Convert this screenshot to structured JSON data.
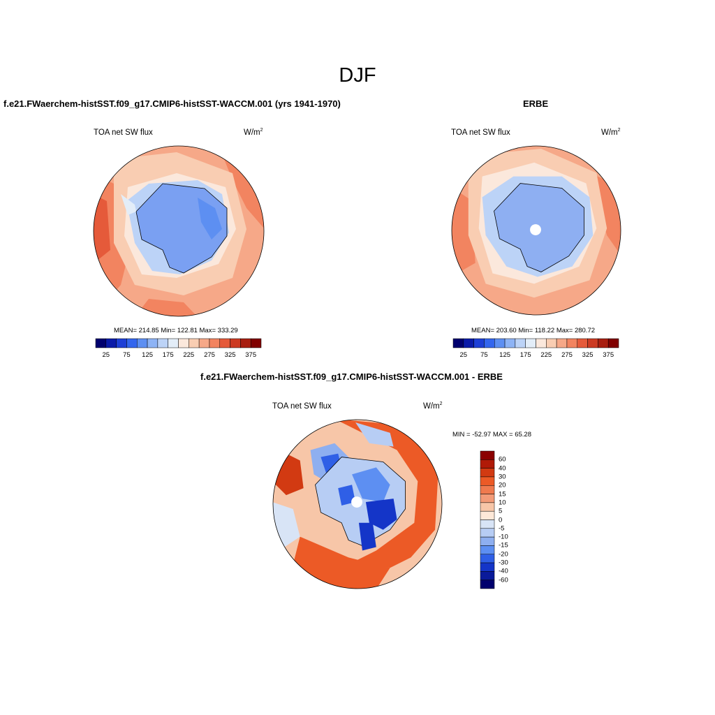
{
  "figure": {
    "title": "DJF"
  },
  "panels": [
    {
      "id": "model",
      "heading": "f.e21.FWaerchem-histSST.f09_g17.CMIP6-histSST-WACCM.001 (yrs 1941-1970)",
      "variable": "TOA net SW flux",
      "units_base": "W/m",
      "units_exp": "2",
      "stats": "MEAN= 214.85  Min= 122.81  Max= 333.29",
      "colorbar_ticks": [
        "25",
        "75",
        "125",
        "175",
        "225",
        "275",
        "325",
        "375"
      ]
    },
    {
      "id": "obs",
      "heading": "ERBE",
      "variable": "TOA net SW flux",
      "units_base": "W/m",
      "units_exp": "2",
      "stats": "MEAN= 203.60  Min= 118.22  Max= 280.72",
      "colorbar_ticks": [
        "25",
        "75",
        "125",
        "175",
        "225",
        "275",
        "325",
        "375"
      ]
    },
    {
      "id": "diff",
      "heading": "f.e21.FWaerchem-histSST.f09_g17.CMIP6-histSST-WACCM.001 - ERBE",
      "variable": "TOA net SW flux",
      "units_base": "W/m",
      "units_exp": "2",
      "stats": "MIN = -52.97 MAX =  65.28",
      "colorbar_labels": [
        "60",
        "40",
        "30",
        "20",
        "15",
        "10",
        "5",
        "0",
        "-5",
        "-10",
        "-15",
        "-20",
        "-30",
        "-40",
        "-60"
      ]
    }
  ],
  "colors": {
    "abs_scale": [
      "#00006e",
      "#0a1aa8",
      "#1d3fd6",
      "#3366ee",
      "#5d8ff2",
      "#8db3f5",
      "#bcd3f7",
      "#e3edf8",
      "#fbe8dc",
      "#f9cdb2",
      "#f6a888",
      "#f28460",
      "#e55a3a",
      "#cc3a22",
      "#a81e10",
      "#800000"
    ],
    "diff_scale": [
      "#8b0000",
      "#b01a08",
      "#d23a12",
      "#ec5a26",
      "#f07a4e",
      "#f39b78",
      "#f7c6a8",
      "#fde8d8",
      "#d8e4f6",
      "#b7cdf4",
      "#8eaff0",
      "#5d8ff2",
      "#2f5fe6",
      "#1435c8",
      "#0a1a9a",
      "#00006e"
    ],
    "antarctica_model": "#7aa0f2",
    "antarctica_obs": "#8eaff2"
  }
}
